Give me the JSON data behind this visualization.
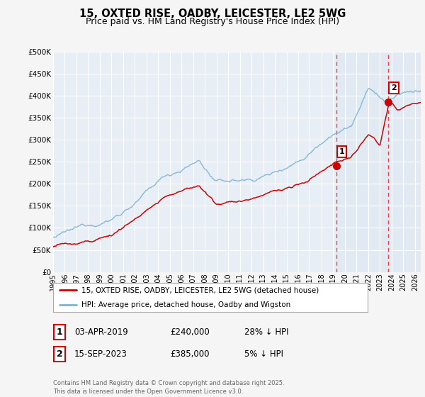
{
  "title": "15, OXTED RISE, OADBY, LEICESTER, LE2 5WG",
  "subtitle": "Price paid vs. HM Land Registry's House Price Index (HPI)",
  "hpi_color": "#7ab3d4",
  "price_color": "#cc0000",
  "vline_color": "#ee4444",
  "background_color": "#f5f5f5",
  "plot_bg_color": "#e8eef5",
  "shade_color": "#d0dff0",
  "grid_color": "#ffffff",
  "ylim": [
    0,
    500000
  ],
  "yticks": [
    0,
    50000,
    100000,
    150000,
    200000,
    250000,
    300000,
    350000,
    400000,
    450000,
    500000
  ],
  "xlim_start": 1995.0,
  "xlim_end": 2026.5,
  "xticks": [
    1995,
    1996,
    1997,
    1998,
    1999,
    2000,
    2001,
    2002,
    2003,
    2004,
    2005,
    2006,
    2007,
    2008,
    2009,
    2010,
    2011,
    2012,
    2013,
    2014,
    2015,
    2016,
    2017,
    2018,
    2019,
    2020,
    2021,
    2022,
    2023,
    2024,
    2025,
    2026
  ],
  "sale1_x": 2019.25,
  "sale1_y": 240000,
  "sale1_label": "1",
  "sale2_x": 2023.71,
  "sale2_y": 385000,
  "sale2_label": "2",
  "legend_entry1": "15, OXTED RISE, OADBY, LEICESTER, LE2 5WG (detached house)",
  "legend_entry2": "HPI: Average price, detached house, Oadby and Wigston",
  "table_row1": [
    "1",
    "03-APR-2019",
    "£240,000",
    "28% ↓ HPI"
  ],
  "table_row2": [
    "2",
    "15-SEP-2023",
    "£385,000",
    "5% ↓ HPI"
  ],
  "footnote": "Contains HM Land Registry data © Crown copyright and database right 2025.\nThis data is licensed under the Open Government Licence v3.0."
}
